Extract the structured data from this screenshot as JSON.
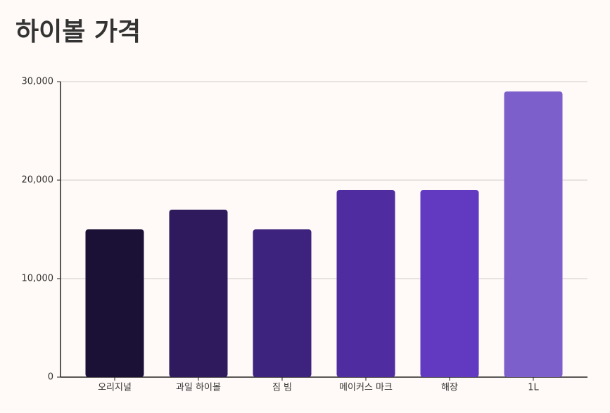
{
  "chart_data": {
    "type": "bar",
    "title": "하이볼 가격",
    "categories": [
      "오리지널",
      "과일 하이볼",
      "짐 빔",
      "메이커스 마크",
      "해장",
      "1L"
    ],
    "values": [
      15000,
      17000,
      15000,
      19000,
      19000,
      29000
    ],
    "colors": [
      "#1b1035",
      "#2e1a5c",
      "#3d237d",
      "#4f2da0",
      "#623ac2",
      "#7d5fcc"
    ],
    "ylim": [
      0,
      30000
    ],
    "yticks": [
      0,
      {
        "value": 10000,
        "label": "10,000"
      },
      {
        "value": 20000,
        "label": "20,000"
      },
      {
        "value": 30000,
        "label": "30,000"
      }
    ],
    "grid": true
  }
}
